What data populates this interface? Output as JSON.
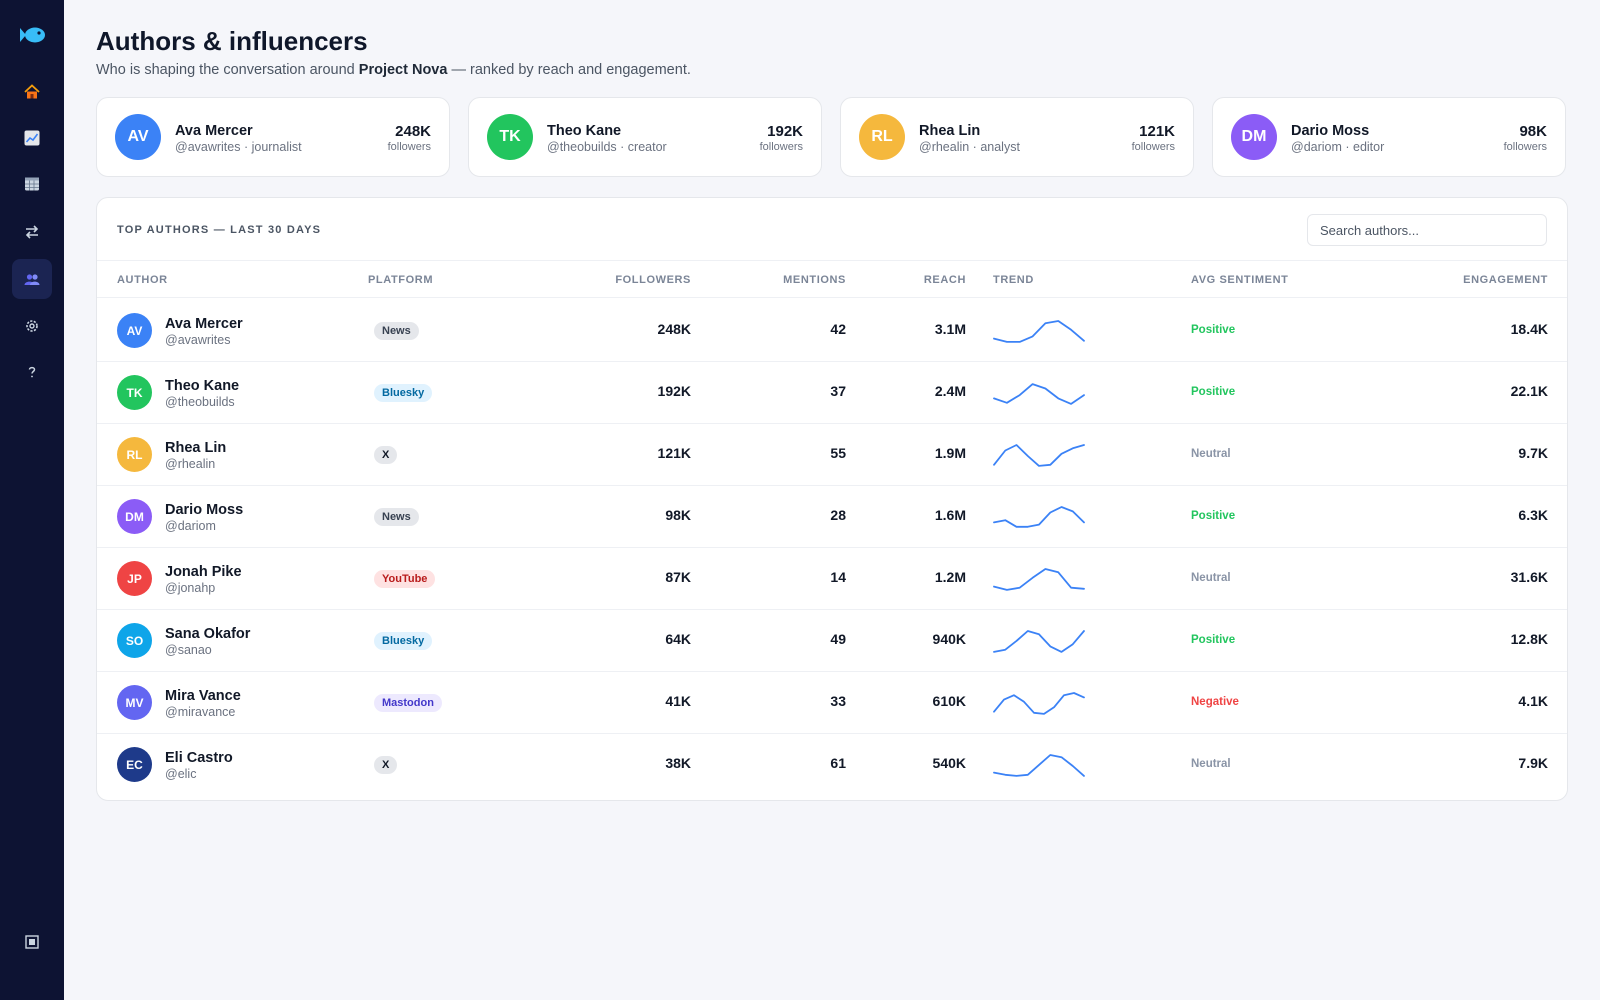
{
  "colors": {
    "sidebar_bg": "#0d1333",
    "accent": "#3b82f6",
    "positive": "#22c55e",
    "neutral": "#8a94a6",
    "negative": "#ef4444"
  },
  "sidebar": {
    "logo_icon": "fish-icon",
    "items": [
      {
        "icon": "home-icon",
        "active": false
      },
      {
        "icon": "chart-icon",
        "active": false
      },
      {
        "icon": "calendar-icon",
        "active": false
      },
      {
        "icon": "swap-icon",
        "active": false
      },
      {
        "icon": "users-icon",
        "active": true
      },
      {
        "icon": "gear-icon",
        "active": false
      },
      {
        "icon": "help-icon",
        "active": false
      }
    ],
    "footer_icon": "collapse-icon"
  },
  "header": {
    "title": "Authors & influencers",
    "subtitle_prefix": "Who is shaping the conversation around ",
    "subtitle_project": "Project Nova",
    "subtitle_suffix": " — ranked by reach and engagement."
  },
  "top_cards": [
    {
      "initials": "AV",
      "name": "Ava Mercer",
      "handle": "@avawrites · journalist",
      "followers": "248K",
      "followers_label": "followers",
      "color": "#3b82f6"
    },
    {
      "initials": "TK",
      "name": "Theo Kane",
      "handle": "@theobuilds · creator",
      "followers": "192K",
      "followers_label": "followers",
      "color": "#22c55e"
    },
    {
      "initials": "RL",
      "name": "Rhea Lin",
      "handle": "@rhealin · analyst",
      "followers": "121K",
      "followers_label": "followers",
      "color": "#f5b83d"
    },
    {
      "initials": "DM",
      "name": "Dario Moss",
      "handle": "@dariom · editor",
      "followers": "98K",
      "followers_label": "followers",
      "color": "#8b5cf6"
    }
  ],
  "table": {
    "title": "TOP AUTHORS — LAST 30 DAYS",
    "search_placeholder": "Search authors...",
    "columns": {
      "author": "AUTHOR",
      "platform": "PLATFORM",
      "followers": "FOLLOWERS",
      "mentions": "MENTIONS",
      "reach": "REACH",
      "trend": "TREND",
      "sentiment": "AVG SENTIMENT",
      "engagement": "ENGAGEMENT"
    },
    "rows": [
      {
        "initials": "AV",
        "name": "Ava Mercer",
        "handle": "@avawrites",
        "avatar_color": "#3b82f6",
        "platform": "News",
        "platform_bg": "#e5e7eb",
        "platform_fg": "#374151",
        "followers": "248K",
        "mentions": "42",
        "reach": "3.1M",
        "trend": [
          0.2,
          0.05,
          0.05,
          0.3,
          0.9,
          1,
          0.6,
          0.1
        ],
        "sentiment": "Positive",
        "sentiment_color": "#22c55e",
        "engagement": "18.4K"
      },
      {
        "initials": "TK",
        "name": "Theo Kane",
        "handle": "@theobuilds",
        "avatar_color": "#22c55e",
        "platform": "Bluesky",
        "platform_bg": "#e0f2fe",
        "platform_fg": "#0369a1",
        "followers": "192K",
        "mentions": "37",
        "reach": "2.4M",
        "trend": [
          0.3,
          0.1,
          0.45,
          0.95,
          0.75,
          0.3,
          0.05,
          0.45
        ],
        "sentiment": "Positive",
        "sentiment_color": "#22c55e",
        "engagement": "22.1K"
      },
      {
        "initials": "RL",
        "name": "Rhea Lin",
        "handle": "@rhealin",
        "avatar_color": "#f5b83d",
        "platform": "X",
        "platform_bg": "#e5e7eb",
        "platform_fg": "#111827",
        "followers": "121K",
        "mentions": "55",
        "reach": "1.9M",
        "trend": [
          0.1,
          0.75,
          1,
          0.5,
          0.05,
          0.1,
          0.6,
          0.85,
          1
        ],
        "sentiment": "Neutral",
        "sentiment_color": "#8a94a6",
        "engagement": "9.7K"
      },
      {
        "initials": "DM",
        "name": "Dario Moss",
        "handle": "@dariom",
        "avatar_color": "#8b5cf6",
        "platform": "News",
        "platform_bg": "#e5e7eb",
        "platform_fg": "#374151",
        "followers": "98K",
        "mentions": "28",
        "reach": "1.6M",
        "trend": [
          0.3,
          0.4,
          0.1,
          0.1,
          0.2,
          0.75,
          1,
          0.8,
          0.3
        ],
        "sentiment": "Positive",
        "sentiment_color": "#22c55e",
        "engagement": "6.3K"
      },
      {
        "initials": "JP",
        "name": "Jonah Pike",
        "handle": "@jonahp",
        "avatar_color": "#ef4444",
        "platform": "YouTube",
        "platform_bg": "#fee2e2",
        "platform_fg": "#b91c1c",
        "followers": "87K",
        "mentions": "14",
        "reach": "1.2M",
        "trend": [
          0.2,
          0.05,
          0.15,
          0.6,
          1,
          0.85,
          0.15,
          0.1
        ],
        "sentiment": "Neutral",
        "sentiment_color": "#8a94a6",
        "engagement": "31.6K"
      },
      {
        "initials": "SO",
        "name": "Sana Okafor",
        "handle": "@sanao",
        "avatar_color": "#0ea5e9",
        "platform": "Bluesky",
        "platform_bg": "#e0f2fe",
        "platform_fg": "#0369a1",
        "followers": "64K",
        "mentions": "49",
        "reach": "940K",
        "trend": [
          0.05,
          0.15,
          0.55,
          1,
          0.85,
          0.3,
          0.05,
          0.4,
          1
        ],
        "sentiment": "Positive",
        "sentiment_color": "#22c55e",
        "engagement": "12.8K"
      },
      {
        "initials": "MV",
        "name": "Mira Vance",
        "handle": "@miravance",
        "avatar_color": "#6366f1",
        "platform": "Mastodon",
        "platform_bg": "#ede9fe",
        "platform_fg": "#4338ca",
        "followers": "41K",
        "mentions": "33",
        "reach": "610K",
        "trend": [
          0.15,
          0.7,
          0.9,
          0.6,
          0.1,
          0.05,
          0.35,
          0.9,
          1,
          0.8
        ],
        "sentiment": "Negative",
        "sentiment_color": "#ef4444",
        "engagement": "4.1K"
      },
      {
        "initials": "EC",
        "name": "Eli Castro",
        "handle": "@elic",
        "avatar_color": "#1e3a8a",
        "platform": "X",
        "platform_bg": "#e5e7eb",
        "platform_fg": "#111827",
        "followers": "38K",
        "mentions": "61",
        "reach": "540K",
        "trend": [
          0.2,
          0.1,
          0.05,
          0.1,
          0.55,
          1,
          0.9,
          0.5,
          0.05
        ],
        "sentiment": "Neutral",
        "sentiment_color": "#8a94a6",
        "engagement": "7.9K"
      }
    ]
  }
}
